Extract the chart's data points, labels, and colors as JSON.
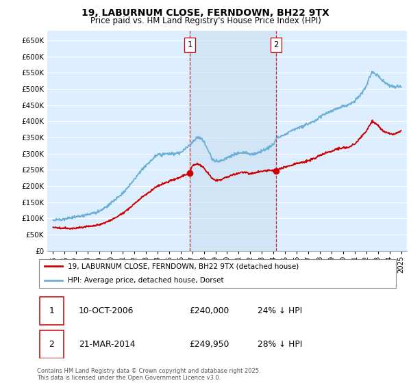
{
  "title": "19, LABURNUM CLOSE, FERNDOWN, BH22 9TX",
  "subtitle": "Price paid vs. HM Land Registry's House Price Index (HPI)",
  "background_color": "#ffffff",
  "plot_bg_color": "#ddeeff",
  "grid_color": "#ffffff",
  "hpi_color": "#6baed6",
  "price_color": "#cc0000",
  "vline_color": "#cc0000",
  "purchases": [
    {
      "label": 1,
      "date_str": "10-OCT-2006",
      "price": 240000,
      "hpi_pct": "24% ↓ HPI",
      "x": 2006.78
    },
    {
      "label": 2,
      "date_str": "21-MAR-2014",
      "price": 249950,
      "hpi_pct": "28% ↓ HPI",
      "x": 2014.22
    }
  ],
  "legend_line1": "19, LABURNUM CLOSE, FERNDOWN, BH22 9TX (detached house)",
  "legend_line2": "HPI: Average price, detached house, Dorset",
  "footnote": "Contains HM Land Registry data © Crown copyright and database right 2025.\nThis data is licensed under the Open Government Licence v3.0.",
  "xlim": [
    1994.5,
    2025.5
  ],
  "ylim": [
    0,
    680000
  ],
  "yticks": [
    0,
    50000,
    100000,
    150000,
    200000,
    250000,
    300000,
    350000,
    400000,
    450000,
    500000,
    550000,
    600000,
    650000
  ],
  "xticks": [
    1995,
    1996,
    1997,
    1998,
    1999,
    2000,
    2001,
    2002,
    2003,
    2004,
    2005,
    2006,
    2007,
    2008,
    2009,
    2010,
    2011,
    2012,
    2013,
    2014,
    2015,
    2016,
    2017,
    2018,
    2019,
    2020,
    2021,
    2022,
    2023,
    2024,
    2025
  ]
}
